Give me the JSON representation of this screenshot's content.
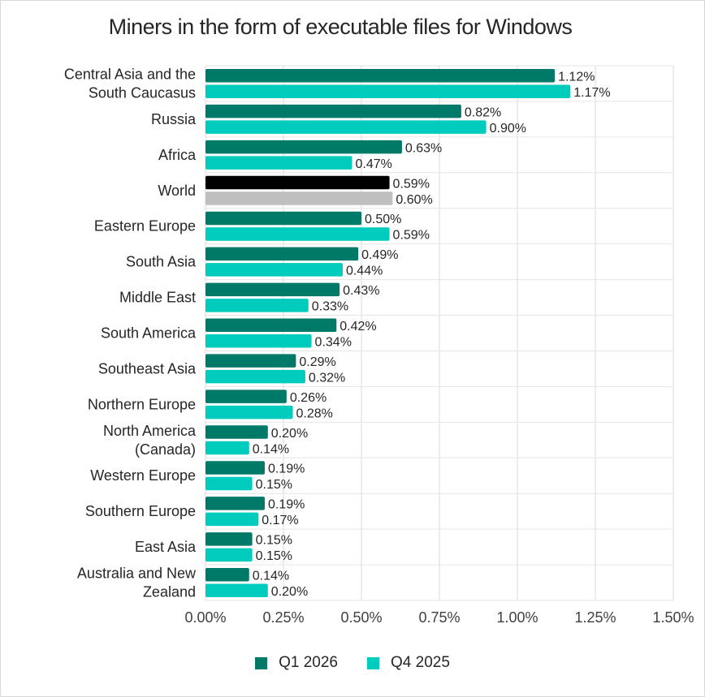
{
  "chart_data": {
    "type": "bar",
    "orientation": "horizontal",
    "title": "Miners in the form of executable files for Windows",
    "categories": [
      [
        "Central Asia and the",
        "South Caucasus"
      ],
      [
        "Russia"
      ],
      [
        "Africa"
      ],
      [
        "World"
      ],
      [
        "Eastern Europe"
      ],
      [
        "South Asia"
      ],
      [
        "Middle East"
      ],
      [
        "South America"
      ],
      [
        "Southeast Asia"
      ],
      [
        "Northern Europe"
      ],
      [
        "North America",
        "(Canada)"
      ],
      [
        "Western Europe"
      ],
      [
        "Southern Europe"
      ],
      [
        "East Asia"
      ],
      [
        "Australia and New",
        "Zealand"
      ]
    ],
    "series": [
      {
        "name": "Q1 2026",
        "color": "#007a68",
        "values": [
          1.12,
          0.82,
          0.63,
          0.59,
          0.5,
          0.49,
          0.43,
          0.42,
          0.29,
          0.26,
          0.2,
          0.19,
          0.19,
          0.15,
          0.14
        ],
        "labels": [
          "1.12%",
          "0.82%",
          "0.63%",
          "0.59%",
          "0.50%",
          "0.49%",
          "0.43%",
          "0.42%",
          "0.29%",
          "0.26%",
          "0.20%",
          "0.19%",
          "0.19%",
          "0.15%",
          "0.14%"
        ]
      },
      {
        "name": "Q4 2025",
        "color": "#00ccbe",
        "values": [
          1.17,
          0.9,
          0.47,
          0.6,
          0.59,
          0.44,
          0.33,
          0.34,
          0.32,
          0.28,
          0.14,
          0.15,
          0.17,
          0.15,
          0.2
        ],
        "labels": [
          "1.17%",
          "0.90%",
          "0.47%",
          "0.60%",
          "0.59%",
          "0.44%",
          "0.33%",
          "0.34%",
          "0.32%",
          "0.28%",
          "0.14%",
          "0.15%",
          "0.17%",
          "0.15%",
          "0.20%"
        ]
      }
    ],
    "highlight": {
      "category_index": 3,
      "colors": [
        "#000000",
        "#bfbfbf"
      ]
    },
    "xlim": [
      0,
      1.5
    ],
    "xticks": [
      0,
      0.25,
      0.5,
      0.75,
      1.0,
      1.25,
      1.5
    ],
    "xtick_labels": [
      "0.00%",
      "0.25%",
      "0.50%",
      "0.75%",
      "1.00%",
      "1.25%",
      "1.50%"
    ],
    "grid": true,
    "legend_position": "bottom"
  }
}
